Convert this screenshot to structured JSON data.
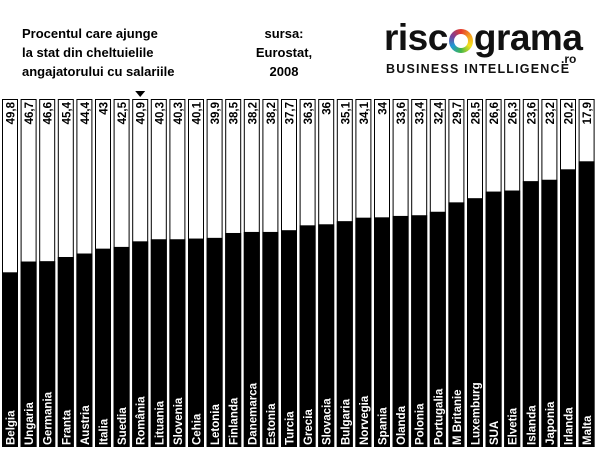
{
  "header": {
    "title_lines": [
      "Procentul care ajunge",
      "la stat din cheltuielile",
      "angajatorului cu salariile"
    ],
    "source_lines": [
      "sursa:",
      "Eurostat,",
      "2008"
    ]
  },
  "logo": {
    "word_pre": "risc",
    "word_post": "grama",
    "tld": ".ro",
    "tagline": "BUSINESS INTELLIGENCE"
  },
  "colors": {
    "bar": "#000000",
    "bar_outline": "#000000",
    "background": "#ffffff",
    "label_text": "#ffffff",
    "value_text": "#000000"
  },
  "chart_data": {
    "type": "bar",
    "orientation": "vertical",
    "marker_category": "România",
    "categories": [
      "Belgia",
      "Ungaria",
      "Germania",
      "Franta",
      "Austria",
      "Italia",
      "Suedia",
      "România",
      "Lituania",
      "Slovenia",
      "Cehia",
      "Letonia",
      "Finlanda",
      "Danemarca",
      "Estonia",
      "Turcia",
      "Grecia",
      "Slovacia",
      "Bulgaria",
      "Norvegia",
      "Spania",
      "Olanda",
      "Polonia",
      "Portugalia",
      "M Britanie",
      "Luxemburg",
      "SUA",
      "Elvetia",
      "Islanda",
      "Japonia",
      "Irlanda",
      "Malta"
    ],
    "values": [
      49.8,
      46.7,
      46.6,
      45.4,
      44.4,
      43,
      42.5,
      40.9,
      40.3,
      40.3,
      40.1,
      39.9,
      38.5,
      38.2,
      38.2,
      37.7,
      36.3,
      36,
      35.1,
      34.1,
      34,
      33.6,
      33.4,
      32.4,
      29.7,
      28.5,
      26.6,
      26.3,
      23.6,
      23.2,
      20.2,
      17.9
    ],
    "value_labels": [
      "49,8",
      "46,7",
      "46,6",
      "45,4",
      "44,4",
      "43",
      "42,5",
      "40,9",
      "40,3",
      "40,3",
      "40,1",
      "39,9",
      "38,5",
      "38,2",
      "38,2",
      "37,7",
      "36,3",
      "36",
      "35,1",
      "34,1",
      "34",
      "33,6",
      "33,4",
      "32,4",
      "29,7",
      "28,5",
      "26,6",
      "26,3",
      "23,6",
      "23,2",
      "20,2",
      "17,9"
    ],
    "ylim": [
      0,
      100
    ],
    "grid": false,
    "legend": "none"
  }
}
